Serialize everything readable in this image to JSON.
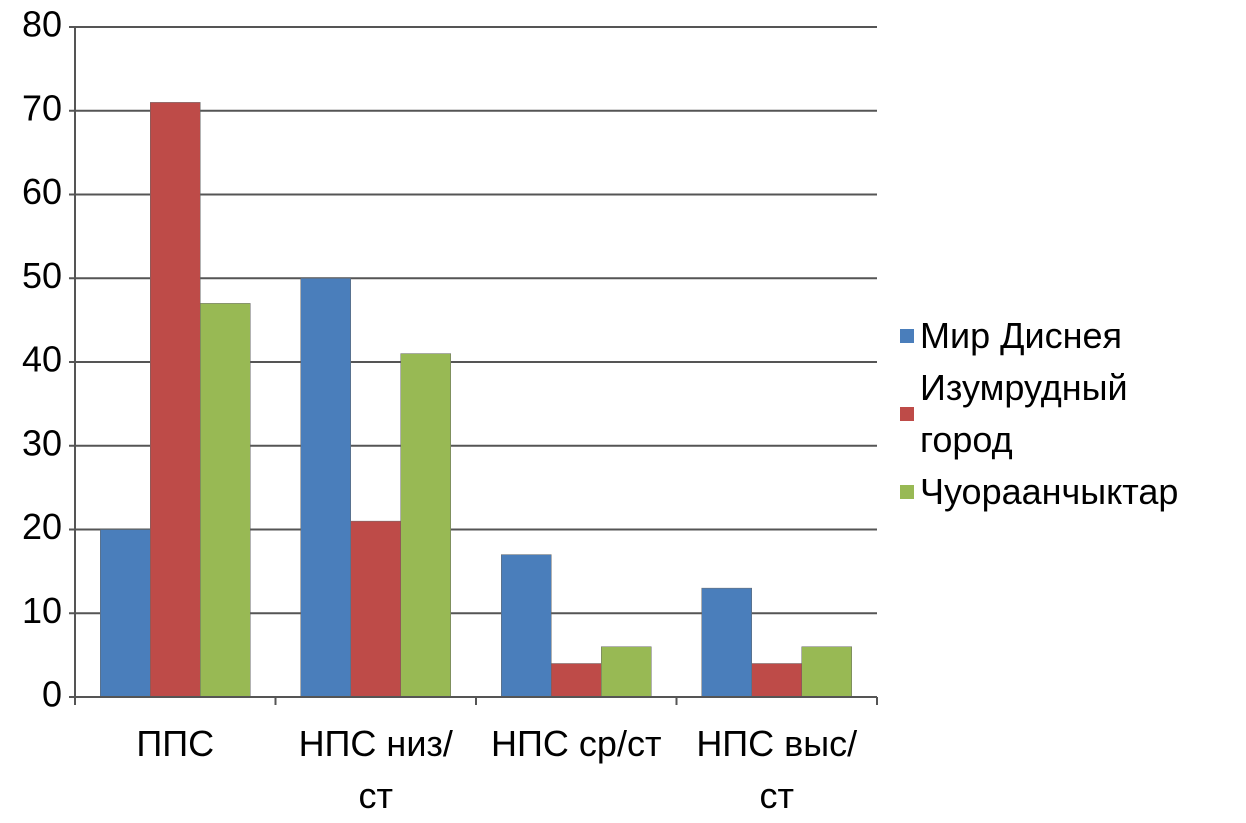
{
  "chart_data": {
    "type": "bar",
    "categories": [
      "ППС",
      "НПС низ/ст",
      "НПС ср/ст",
      "НПС выс/ст"
    ],
    "series": [
      {
        "name": "Мир Диснея",
        "color": "#4a7ebb",
        "values": [
          20,
          50,
          17,
          13
        ]
      },
      {
        "name": "Изумрудный город",
        "color": "#be4b48",
        "values": [
          71,
          21,
          4,
          4
        ]
      },
      {
        "name": "Чуораанчыктар",
        "color": "#98b954",
        "values": [
          47,
          41,
          6,
          6
        ]
      }
    ],
    "ylim": [
      0,
      80
    ],
    "yticks": [
      0,
      10,
      20,
      30,
      40,
      50,
      60,
      70,
      80
    ],
    "grid": true,
    "legend": "right"
  }
}
